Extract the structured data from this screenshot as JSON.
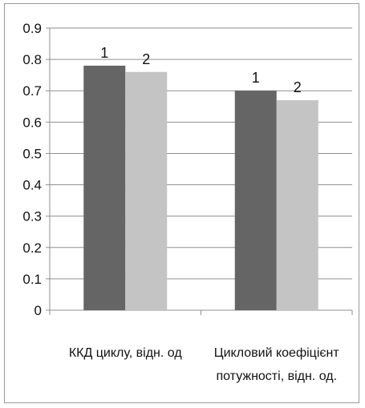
{
  "chart_data": {
    "type": "bar",
    "categories": [
      [
        "ККД  циклу, відн. од"
      ],
      [
        "Цикловий коефіцієнт",
        "потужності, відн. од."
      ]
    ],
    "series": [
      {
        "values": [
          0.78,
          0.7
        ],
        "labels": [
          "1",
          "1"
        ],
        "color": "#656565"
      },
      {
        "values": [
          0.76,
          0.67
        ],
        "labels": [
          "2",
          "2"
        ],
        "color": "#c4c4c4"
      }
    ],
    "yticks": [
      "0",
      "0.1",
      "0.2",
      "0.3",
      "0.4",
      "0.5",
      "0.6",
      "0.7",
      "0.8",
      "0.9"
    ],
    "ylim": [
      0,
      0.9
    ],
    "grid": true,
    "legend": "none",
    "title": "",
    "xlabel": "",
    "ylabel": ""
  }
}
